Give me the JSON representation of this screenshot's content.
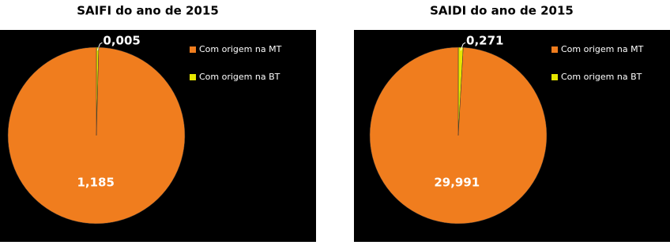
{
  "chart_data": [
    {
      "type": "pie",
      "title": "SAIFI do ano de 2015",
      "categories": [
        "Com origem na MT",
        "Com origem na BT"
      ],
      "values": [
        1.185,
        0.005
      ],
      "value_labels": [
        "1,185",
        "0,005"
      ],
      "colors": [
        "#f07d1e",
        "#e6e600"
      ]
    },
    {
      "type": "pie",
      "title": "SAIDI do ano de 2015",
      "categories": [
        "Com origem na MT",
        "Com origem na BT"
      ],
      "values": [
        29.991,
        0.271
      ],
      "value_labels": [
        "29,991",
        "0,271"
      ],
      "colors": [
        "#f07d1e",
        "#e6e600"
      ]
    }
  ]
}
